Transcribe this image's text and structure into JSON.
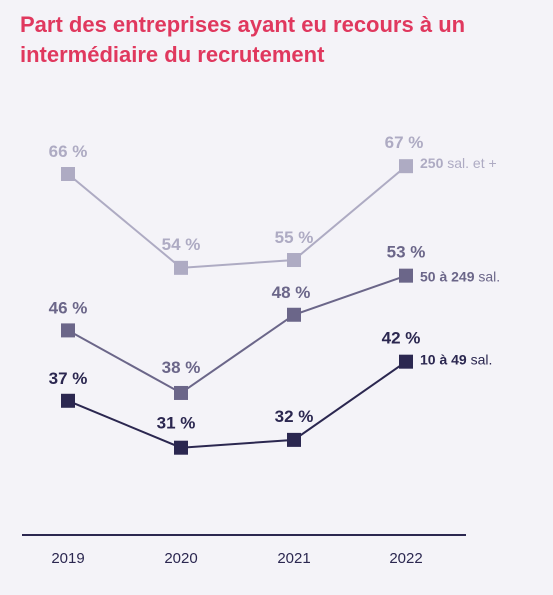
{
  "chart_data": {
    "type": "line",
    "title": "Part des entreprises ayant eu recours à un intermédiaire du recrutement",
    "x": [
      "2019",
      "2020",
      "2021",
      "2022"
    ],
    "value_labels_suffix": " %",
    "series": [
      {
        "name_bold": "250",
        "name_rest": " sal. et +",
        "values": [
          66,
          54,
          55,
          67
        ],
        "color": "#aeabc3"
      },
      {
        "name_bold": "50 à 249",
        "name_rest": " sal.",
        "values": [
          46,
          38,
          48,
          53
        ],
        "color": "#6b6689"
      },
      {
        "name_bold": "10 à 49",
        "name_rest": " sal.",
        "values": [
          37,
          31,
          32,
          42
        ],
        "color": "#2b2750"
      }
    ]
  }
}
